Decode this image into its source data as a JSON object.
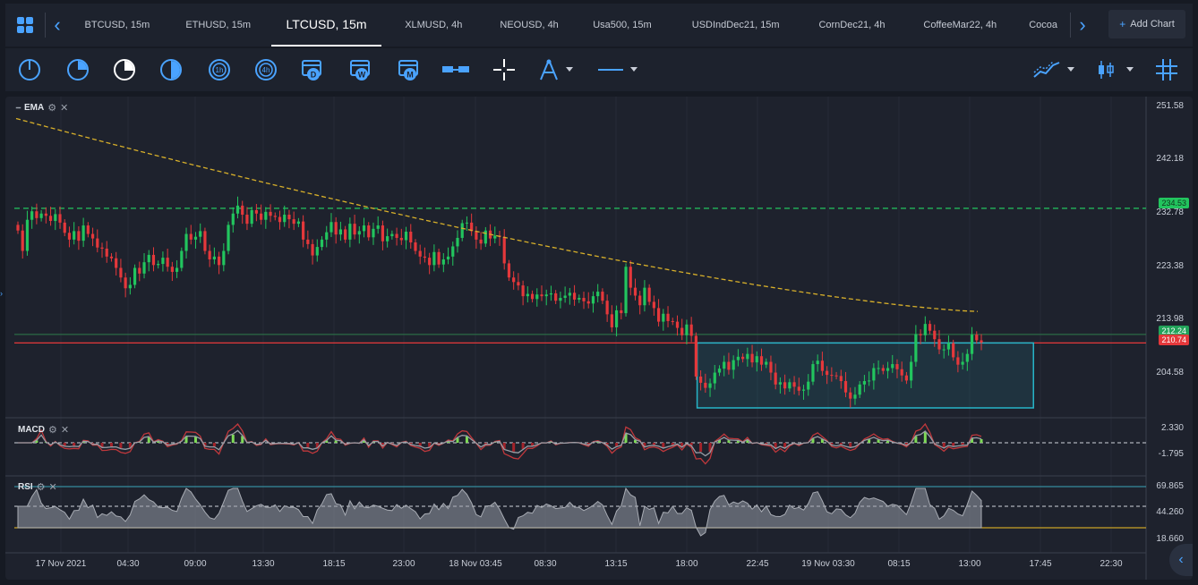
{
  "tabs": [
    {
      "label": "BTCUSD, 15m",
      "w": 108
    },
    {
      "label": "ETHUSD, 15m",
      "w": 118
    },
    {
      "label": "LTCUSD, 15m",
      "w": 124,
      "active": true
    },
    {
      "label": "XLMUSD, 4h",
      "w": 116
    },
    {
      "label": "NEOUSD, 4h",
      "w": 98
    },
    {
      "label": "Usa500, 15m",
      "w": 110
    },
    {
      "label": "USDIndDec21, 15m",
      "w": 144
    },
    {
      "label": "CornDec21, 4h",
      "w": 116
    },
    {
      "label": "CoffeeMar22, 4h",
      "w": 126
    },
    {
      "label": "Cocoa",
      "w": 60
    }
  ],
  "add_chart": "Add Chart",
  "tools": [
    "timeframe-1m-icon",
    "timeframe-15m-icon",
    "timeframe-30m-icon",
    "timeframe-45m-icon",
    "timeframe-1h-icon",
    "timeframe-4h-icon",
    "calendar-day-icon",
    "calendar-week-icon",
    "calendar-month-icon",
    "measure-icon",
    "crosshair-icon",
    "drawing-tool-icon",
    "line-style-icon"
  ],
  "cal_letters": {
    "day": "D",
    "week": "W",
    "month": "M"
  },
  "hour_letters": {
    "h1": "1h",
    "h4": "4h"
  },
  "indicators": {
    "ema": "EMA",
    "macd": "MACD",
    "rsi": "RSI"
  },
  "price_axis": [
    "251.58",
    "242.18",
    "232.78",
    "223.38",
    "213.98",
    "204.58"
  ],
  "macd_axis": [
    "2.330",
    "-1.795"
  ],
  "rsi_axis": [
    "69.865",
    "44.260",
    "18.660"
  ],
  "badges": {
    "green_level": "234.53",
    "last_green": "212.24",
    "last_red": "210.74"
  },
  "time_axis": [
    "17 Nov 2021",
    "04:30",
    "09:00",
    "13:30",
    "18:15",
    "23:00",
    "18 Nov 03:45",
    "08:30",
    "13:15",
    "18:00",
    "22:45",
    "19 Nov 03:30",
    "08:15",
    "13:00",
    "17:45",
    "22:30"
  ],
  "colors": {
    "up": "#22c55e",
    "down": "#e5383b",
    "ema": "#d8b02a",
    "green_line": "#22c55e",
    "red_line": "#e5383b",
    "box": "#27b5c8",
    "rsi_band": "#3aa6b9"
  },
  "chart_data": {
    "type": "candlestick",
    "price_range": [
      198.0,
      253.0
    ],
    "levels": {
      "resistance": 234.53,
      "support_green": 212.24,
      "support_red": 210.74
    },
    "range_box": {
      "from_index": 146,
      "to_index": 216,
      "high": 210.74,
      "low": 198.0
    },
    "candles_close": [
      230.6,
      227.0,
      232.5,
      234.0,
      232.8,
      233.6,
      233.2,
      232.3,
      233.5,
      232.0,
      230.2,
      229.0,
      230.5,
      228.8,
      231.5,
      230.0,
      229.2,
      227.6,
      227.4,
      226.0,
      225.7,
      224.0,
      222.3,
      220.4,
      221.0,
      224.0,
      223.0,
      225.0,
      226.3,
      224.5,
      224.7,
      225.8,
      224.2,
      223.3,
      224.0,
      227.0,
      230.0,
      229.0,
      229.5,
      230.5,
      227.0,
      225.5,
      226.0,
      224.5,
      227.0,
      231.6,
      233.6,
      235.0,
      233.4,
      231.8,
      234.2,
      233.6,
      232.5,
      233.9,
      233.2,
      233.0,
      232.1,
      233.4,
      232.6,
      231.8,
      232.2,
      229.0,
      228.2,
      226.2,
      227.7,
      229.0,
      230.3,
      232.1,
      229.9,
      230.8,
      229.0,
      231.8,
      229.9,
      230.5,
      231.5,
      229.4,
      230.9,
      231.5,
      228.7,
      229.6,
      230.0,
      229.3,
      228.9,
      230.4,
      228.5,
      227.0,
      226.0,
      225.8,
      224.5,
      226.8,
      224.6,
      225.5,
      226.0,
      227.8,
      229.3,
      231.9,
      232.0,
      230.5,
      229.0,
      228.3,
      230.6,
      229.2,
      229.7,
      229.5,
      224.8,
      222.3,
      221.5,
      220.9,
      219.0,
      219.4,
      218.5,
      219.3,
      219.0,
      219.3,
      219.5,
      218.2,
      218.7,
      219.1,
      219.6,
      218.4,
      218.7,
      218.1,
      217.7,
      219.0,
      219.8,
      218.2,
      215.8,
      213.5,
      216.5,
      216.0,
      224.2,
      220.5,
      219.1,
      217.4,
      220.5,
      218.0,
      216.9,
      214.5,
      215.9,
      214.6,
      214.5,
      213.4,
      212.1,
      214.0,
      212.0,
      204.8,
      203.7,
      202.8,
      203.6,
      205.5,
      206.2,
      207.4,
      206.0,
      207.7,
      208.3,
      207.9,
      208.8,
      207.3,
      208.4,
      206.9,
      207.4,
      205.5,
      203.4,
      203.8,
      202.7,
      203.8,
      203.0,
      202.3,
      202.5,
      203.9,
      207.0,
      207.6,
      205.8,
      205.1,
      205.0,
      204.9,
      204.0,
      202.0,
      200.9,
      201.6,
      203.4,
      204.0,
      204.1,
      206.3,
      206.3,
      205.8,
      206.3,
      207.0,
      206.1,
      205.0,
      204.1,
      207.4,
      212.3,
      212.1,
      214.1,
      212.9,
      211.4,
      209.6,
      209.6,
      210.7,
      208.2,
      206.9,
      207.4,
      208.8,
      212.2,
      211.2,
      210.8
    ],
    "ema_end": 216.3
  }
}
